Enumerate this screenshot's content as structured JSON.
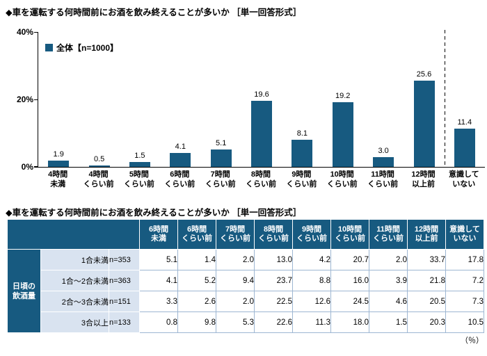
{
  "colors": {
    "bar": "#175a80",
    "table_header_bg": "#175a80",
    "label_cell_bg": "#d9e3f0",
    "body_border": "#9db6d2",
    "axis": "#000000"
  },
  "chart": {
    "title": "◆車を運転する何時間前にお酒を飲み終えることが多いか ［単一回答形式］",
    "legend_label": "全体【n=1000】",
    "ytick_labels": [
      "40%",
      "20%",
      "0%"
    ]
  },
  "table": {
    "title": "◆車を運転する何時間前にお酒を飲み終えることが多いか ［単一回答形式］",
    "group_label_lines": "日頃の\n飲酒量",
    "unit_note": "（％）"
  },
  "chart_data": [
    {
      "type": "bar",
      "title": "車を運転する何時間前にお酒を飲み終えることが多いか［単一回答形式］",
      "series_name": "全体",
      "n_label": "n=1000",
      "categories": [
        "4時間未満",
        "4時間くらい前",
        "5時間くらい前",
        "6時間くらい前",
        "7時間くらい前",
        "8時間くらい前",
        "9時間くらい前",
        "10時間くらい前",
        "11時間くらい前",
        "12時間以上前",
        "意識していない"
      ],
      "category_lines": [
        "4時間\n未満",
        "4時間\nくらい前",
        "5時間\nくらい前",
        "6時間\nくらい前",
        "7時間\nくらい前",
        "8時間\nくらい前",
        "9時間\nくらい前",
        "10時間\nくらい前",
        "11時間\nくらい前",
        "12時間\n以上前",
        "意識して\nいない"
      ],
      "values": [
        1.9,
        0.5,
        1.5,
        4.1,
        5.1,
        19.6,
        8.1,
        19.2,
        3.0,
        25.6,
        11.4
      ],
      "unit": "%",
      "ylim": [
        0,
        40
      ],
      "yticks": [
        0,
        20,
        40
      ],
      "grid": false,
      "legend_position": "top-left",
      "separator_before_last_category": true
    },
    {
      "type": "table",
      "title": "車を運転する何時間前にお酒を飲み終えることが多いか［単一回答形式］",
      "unit": "%",
      "row_group": "日頃の飲酒量",
      "columns": [
        "6時間未満",
        "6時間くらい前",
        "7時間くらい前",
        "8時間くらい前",
        "9時間くらい前",
        "10時間くらい前",
        "11時間くらい前",
        "12時間以上前",
        "意識していない"
      ],
      "column_lines": [
        "6時間\n未満",
        "6時間\nくらい前",
        "7時間\nくらい前",
        "8時間\nくらい前",
        "9時間\nくらい前",
        "10時間\nくらい前",
        "11時間\nくらい前",
        "12時間\n以上前",
        "意識して\nいない"
      ],
      "rows": [
        {
          "label": "1合未満",
          "n_label": "n=353",
          "values": [
            5.1,
            1.4,
            2.0,
            13.0,
            4.2,
            20.7,
            2.0,
            33.7,
            17.8
          ]
        },
        {
          "label": "1合～2合未満",
          "n_label": "n=363",
          "values": [
            4.1,
            5.2,
            9.4,
            23.7,
            8.8,
            16.0,
            3.9,
            21.8,
            7.2
          ]
        },
        {
          "label": "2合～3合未満",
          "n_label": "n=151",
          "values": [
            3.3,
            2.6,
            2.0,
            22.5,
            12.6,
            24.5,
            4.6,
            20.5,
            7.3
          ]
        },
        {
          "label": "3合以上",
          "n_label": "n=133",
          "values": [
            0.8,
            9.8,
            5.3,
            22.6,
            11.3,
            18.0,
            1.5,
            20.3,
            10.5
          ]
        }
      ]
    }
  ]
}
